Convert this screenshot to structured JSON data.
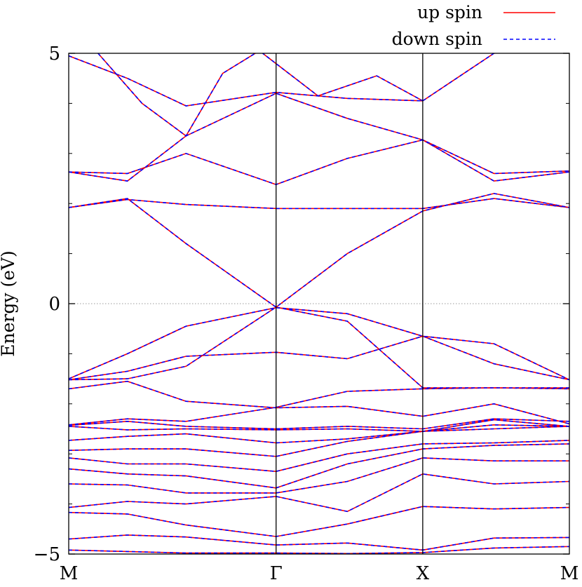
{
  "chart_data": {
    "type": "line",
    "title": "",
    "xlabel": "",
    "ylabel": "Energy (eV)",
    "xlim": [
      0,
      3
    ],
    "ylim": [
      -5,
      5
    ],
    "yticks": [
      -5,
      0,
      5
    ],
    "xticks": [
      {
        "label": "M",
        "x": 0
      },
      {
        "label": "Γ",
        "x": 1.4142
      },
      {
        "label": "X",
        "x": 2.4142
      },
      {
        "label": "M",
        "x": 3.4142
      }
    ],
    "fermi_level": 0,
    "legend_position": "top-right",
    "colors": {
      "up": "#ff0000",
      "down": "#0000ff",
      "axis": "#000000",
      "fermi": "#999999"
    },
    "series": [
      {
        "name": "up spin",
        "style": "solid",
        "color": "#ff0000"
      },
      {
        "name": "down spin",
        "style": "dashed",
        "color": "#0000ff"
      }
    ],
    "bands": [
      [
        [
          0,
          -4.92
        ],
        [
          0.4,
          -4.95
        ],
        [
          0.8,
          -4.98
        ],
        [
          1.4142,
          -4.98
        ],
        [
          1.9,
          -4.99
        ],
        [
          2.4142,
          -4.97
        ],
        [
          2.9,
          -4.88
        ],
        [
          3.4142,
          -4.85
        ]
      ],
      [
        [
          0,
          -4.7
        ],
        [
          0.4,
          -4.62
        ],
        [
          0.8,
          -4.66
        ],
        [
          1.4142,
          -4.82
        ],
        [
          1.9,
          -4.78
        ],
        [
          2.4142,
          -4.92
        ],
        [
          2.9,
          -4.68
        ],
        [
          3.4142,
          -4.67
        ]
      ],
      [
        [
          0,
          -4.17
        ],
        [
          0.4,
          -4.2
        ],
        [
          0.8,
          -4.42
        ],
        [
          1.4142,
          -4.65
        ],
        [
          1.9,
          -4.4
        ],
        [
          2.4142,
          -4.05
        ],
        [
          2.9,
          -4.1
        ],
        [
          3.4142,
          -4.07
        ]
      ],
      [
        [
          0,
          -4.07
        ],
        [
          0.4,
          -3.95
        ],
        [
          0.8,
          -4.0
        ],
        [
          1.4142,
          -3.85
        ],
        [
          1.9,
          -4.15
        ],
        [
          2.4142,
          -3.4
        ],
        [
          2.9,
          -3.6
        ],
        [
          3.4142,
          -3.55
        ]
      ],
      [
        [
          0,
          -3.6
        ],
        [
          0.4,
          -3.62
        ],
        [
          0.8,
          -3.78
        ],
        [
          1.4142,
          -3.78
        ],
        [
          1.9,
          -3.55
        ],
        [
          2.4142,
          -3.08
        ],
        [
          2.9,
          -3.14
        ],
        [
          3.4142,
          -3.14
        ]
      ],
      [
        [
          0,
          -3.3
        ],
        [
          0.4,
          -3.4
        ],
        [
          0.8,
          -3.44
        ],
        [
          1.4142,
          -3.68
        ],
        [
          1.9,
          -3.2
        ],
        [
          2.4142,
          -2.9
        ],
        [
          2.9,
          -2.83
        ],
        [
          3.4142,
          -2.8
        ]
      ],
      [
        [
          0,
          -3.08
        ],
        [
          0.4,
          -3.2
        ],
        [
          0.8,
          -3.2
        ],
        [
          1.4142,
          -3.35
        ],
        [
          1.9,
          -3.0
        ],
        [
          2.4142,
          -2.8
        ],
        [
          2.9,
          -2.78
        ],
        [
          3.4142,
          -2.73
        ]
      ],
      [
        [
          0,
          -2.93
        ],
        [
          0.4,
          -2.9
        ],
        [
          0.8,
          -2.9
        ],
        [
          1.4142,
          -3.05
        ],
        [
          1.9,
          -2.75
        ],
        [
          2.4142,
          -2.55
        ],
        [
          2.9,
          -2.42
        ],
        [
          3.4142,
          -2.45
        ]
      ],
      [
        [
          0,
          -2.73
        ],
        [
          0.4,
          -2.65
        ],
        [
          0.8,
          -2.6
        ],
        [
          1.4142,
          -2.78
        ],
        [
          1.9,
          -2.7
        ],
        [
          2.4142,
          -2.55
        ],
        [
          2.9,
          -2.5
        ],
        [
          3.4142,
          -2.45
        ]
      ],
      [
        [
          0,
          -2.45
        ],
        [
          0.4,
          -2.52
        ],
        [
          0.8,
          -2.5
        ],
        [
          1.4142,
          -2.52
        ],
        [
          1.9,
          -2.5
        ],
        [
          2.4142,
          -2.55
        ],
        [
          2.9,
          -2.32
        ],
        [
          3.4142,
          -2.45
        ]
      ],
      [
        [
          0,
          -2.43
        ],
        [
          0.4,
          -2.35
        ],
        [
          0.8,
          -2.45
        ],
        [
          1.4142,
          -2.5
        ],
        [
          1.9,
          -2.45
        ],
        [
          2.4142,
          -2.5
        ],
        [
          2.9,
          -2.3
        ],
        [
          3.4142,
          -2.35
        ]
      ],
      [
        [
          0,
          -2.42
        ],
        [
          0.4,
          -2.3
        ],
        [
          0.8,
          -2.35
        ],
        [
          1.4142,
          -2.07
        ],
        [
          1.9,
          -1.75
        ],
        [
          2.4142,
          -1.7
        ],
        [
          2.9,
          -1.68
        ],
        [
          3.4142,
          -1.7
        ]
      ],
      [
        [
          0,
          -1.7
        ],
        [
          0.4,
          -1.55
        ],
        [
          0.8,
          -1.95
        ],
        [
          1.4142,
          -2.08
        ],
        [
          1.9,
          -2.05
        ],
        [
          2.4142,
          -2.25
        ],
        [
          2.9,
          -2.0
        ],
        [
          3.4142,
          -2.4
        ]
      ],
      [
        [
          0,
          -1.52
        ],
        [
          0.4,
          -1.35
        ],
        [
          0.8,
          -1.05
        ],
        [
          1.4142,
          -0.97
        ],
        [
          1.9,
          -1.1
        ],
        [
          2.4142,
          -0.65
        ],
        [
          2.9,
          -1.2
        ],
        [
          3.4142,
          -1.52
        ]
      ],
      [
        [
          0,
          -1.52
        ],
        [
          0.4,
          -1.5
        ],
        [
          0.8,
          -1.25
        ],
        [
          1.4142,
          -0.07
        ],
        [
          1.9,
          -0.35
        ],
        [
          2.4142,
          -1.68
        ],
        [
          2.9,
          -1.68
        ],
        [
          3.4142,
          -1.68
        ]
      ],
      [
        [
          0,
          -1.5
        ],
        [
          0.4,
          -1.0
        ],
        [
          0.8,
          -0.45
        ],
        [
          1.4142,
          -0.08
        ],
        [
          1.9,
          -0.2
        ],
        [
          2.4142,
          -0.65
        ],
        [
          2.9,
          -0.8
        ],
        [
          3.4142,
          -1.52
        ]
      ],
      [
        [
          0,
          1.92
        ],
        [
          0.4,
          2.08
        ],
        [
          0.8,
          1.98
        ],
        [
          1.4142,
          1.9
        ],
        [
          1.9,
          1.9
        ],
        [
          2.4142,
          1.9
        ],
        [
          2.9,
          2.1
        ],
        [
          3.4142,
          1.92
        ]
      ],
      [
        [
          0,
          1.92
        ],
        [
          0.4,
          2.1
        ],
        [
          0.8,
          1.2
        ],
        [
          1.4142,
          -0.07
        ],
        [
          1.9,
          1.0
        ],
        [
          2.4142,
          1.85
        ],
        [
          2.9,
          2.2
        ],
        [
          3.4142,
          1.92
        ]
      ],
      [
        [
          0,
          2.63
        ],
        [
          0.4,
          2.6
        ],
        [
          0.8,
          3.0
        ],
        [
          1.4142,
          2.38
        ],
        [
          1.9,
          2.9
        ],
        [
          2.4142,
          3.27
        ],
        [
          2.9,
          2.45
        ],
        [
          3.4142,
          2.63
        ]
      ],
      [
        [
          0,
          2.63
        ],
        [
          0.4,
          2.45
        ],
        [
          0.8,
          3.35
        ],
        [
          1.4142,
          4.2
        ],
        [
          1.9,
          3.7
        ],
        [
          2.4142,
          3.27
        ],
        [
          2.9,
          2.6
        ],
        [
          3.4142,
          2.65
        ]
      ],
      [
        [
          0,
          4.95
        ],
        [
          0.4,
          4.5
        ],
        [
          0.8,
          3.95
        ],
        [
          1.4142,
          4.22
        ],
        [
          1.9,
          4.1
        ],
        [
          2.4142,
          4.05
        ],
        [
          2.9,
          5.0
        ],
        [
          3.4142,
          5.2
        ]
      ],
      [
        [
          0.2,
          5.0
        ],
        [
          0.5,
          4.0
        ],
        [
          0.8,
          3.35
        ],
        [
          1.05,
          4.6
        ],
        [
          1.3,
          5.05
        ],
        [
          1.7,
          4.15
        ],
        [
          2.1,
          4.55
        ],
        [
          2.4142,
          4.05
        ]
      ]
    ]
  }
}
